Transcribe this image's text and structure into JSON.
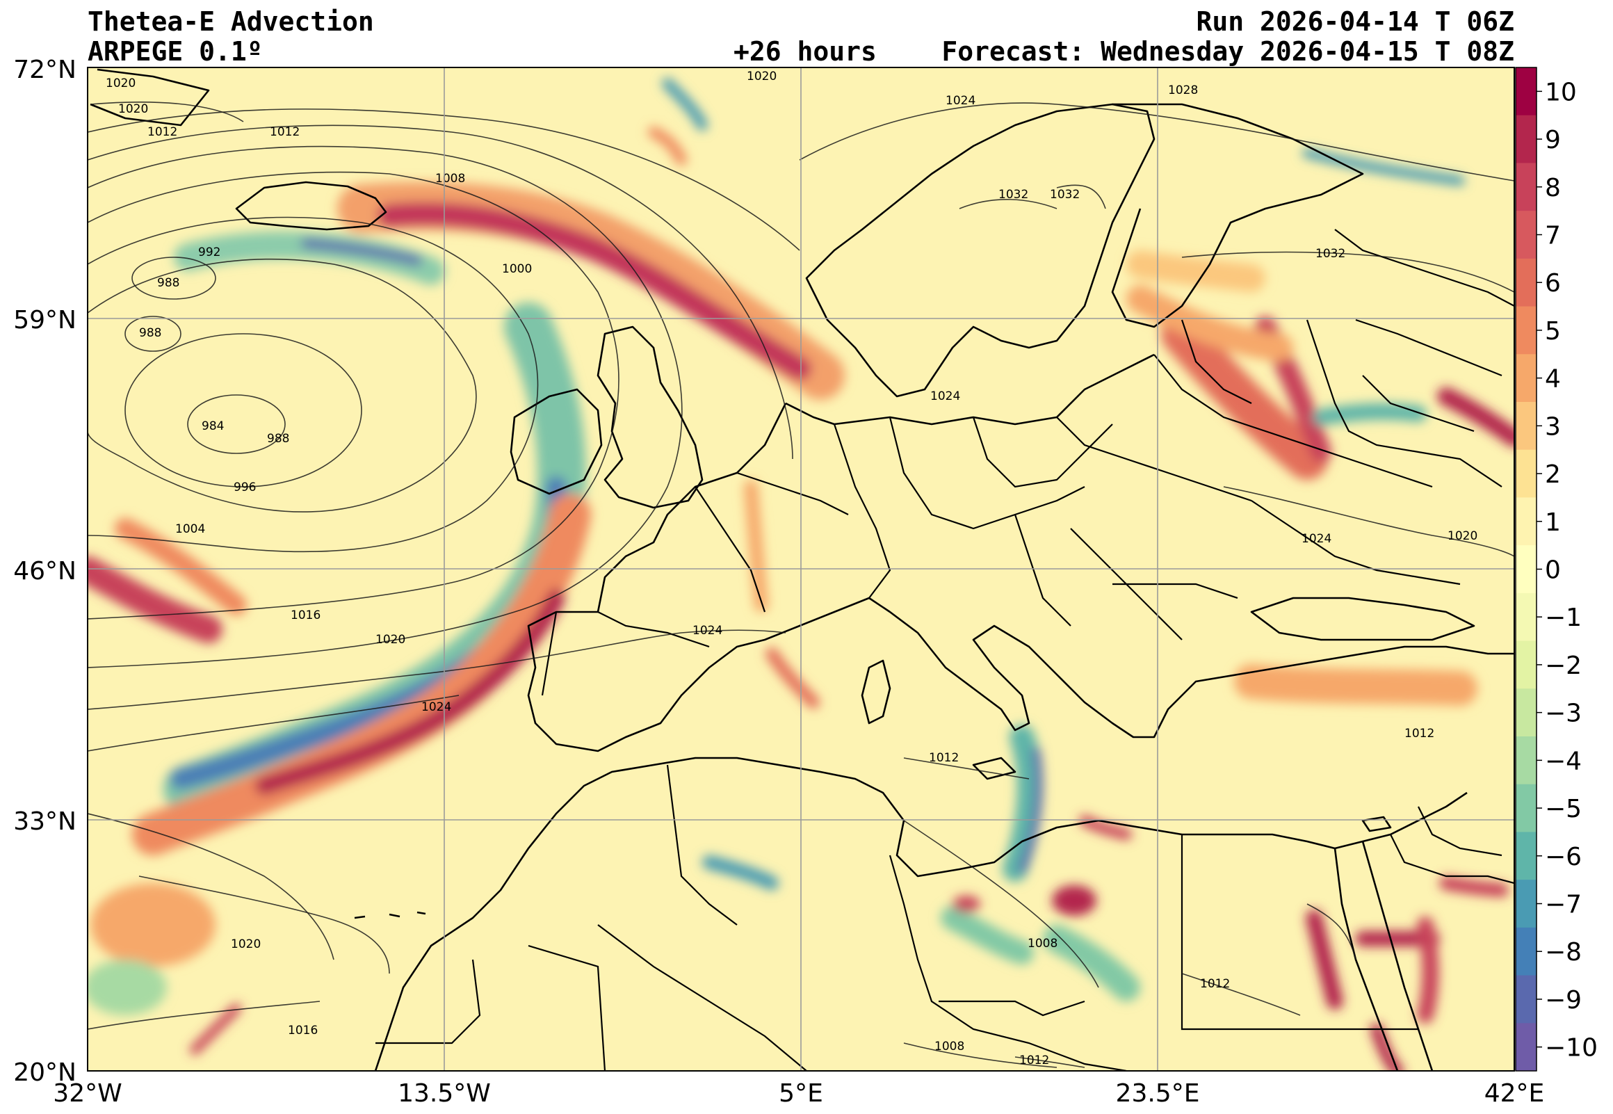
{
  "header": {
    "title": "Thetea-E Advection",
    "model": "ARPEGE 0.1º",
    "run": "Run 2026-04-14 T 06Z",
    "lead": "+26 hours",
    "forecast": "Forecast: Wednesday 2026-04-15 T 08Z"
  },
  "map": {
    "lon_range": [
      -32,
      42
    ],
    "lat_range": [
      20,
      72
    ],
    "lon_ticks": [
      "32°W",
      "13.5°W",
      "5°E",
      "23.5°E",
      "42°E"
    ],
    "lat_ticks": [
      "72°N",
      "59°N",
      "46°N",
      "33°N",
      "20°N"
    ],
    "isobar_labels": [
      "1020",
      "1020",
      "1012",
      "1012",
      "1008",
      "992",
      "988",
      "988",
      "1000",
      "984",
      "988",
      "996",
      "1004",
      "1016",
      "1020",
      "1024",
      "1020",
      "1016",
      "1020",
      "1024",
      "1024",
      "1028",
      "1032",
      "1032",
      "1032",
      "1024",
      "1024",
      "1020",
      "1012",
      "1008",
      "1012",
      "1008",
      "1012",
      "1012"
    ]
  },
  "colorbar": {
    "ticks": [
      "10",
      "9",
      "8",
      "7",
      "6",
      "5",
      "4",
      "3",
      "2",
      "1",
      "0",
      "−1",
      "−2",
      "−3",
      "−4",
      "−5",
      "−6",
      "−7",
      "−8",
      "−9",
      "−10"
    ],
    "colors": [
      "#9e0142",
      "#b3264d",
      "#c8425a",
      "#d7595e",
      "#e36e5a",
      "#ef8a5f",
      "#f6a86a",
      "#fbc77e",
      "#fde293",
      "#fef3b0",
      "#ffffbf",
      "#f4f9b3",
      "#e3f3a4",
      "#c8e8a0",
      "#a7daa3",
      "#82c9a5",
      "#5fb5a9",
      "#4a9bb3",
      "#4480b7",
      "#5a69ae",
      "#6f5ca8"
    ]
  }
}
